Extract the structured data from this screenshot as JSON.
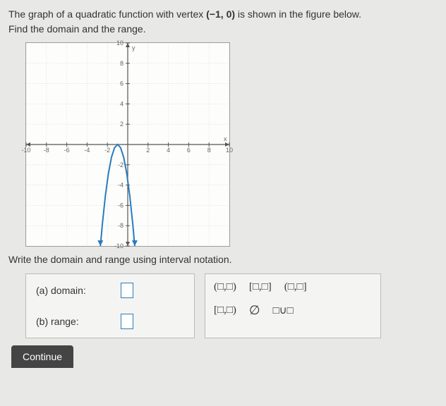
{
  "question": {
    "line1_pre": "The graph of a quadratic function with vertex ",
    "vertex": "(−1, 0)",
    "line1_post": " is shown in the figure below.",
    "line2": "Find the domain and the range."
  },
  "instruction": "Write the domain and range using interval notation.",
  "answers": {
    "a_label": "(a)  domain:",
    "b_label": "(b)  range:"
  },
  "symbols": {
    "open_open": "(□,□)",
    "closed_closed": "[□,□]",
    "open_closed": "(□,□]",
    "closed_open": "[□,□)",
    "empty": "∅",
    "union": "□∪□"
  },
  "continue_label": "Continue",
  "graph": {
    "type": "quadratic",
    "xlim": [
      -10,
      10
    ],
    "ylim": [
      -10,
      10
    ],
    "xtick_step": 2,
    "ytick_step": 2,
    "grid_color": "#d0d0cc",
    "axis_color": "#555",
    "curve_color": "#2a7bbf",
    "curve_width": 2,
    "background": "#fdfdfb",
    "vertex": [
      -1,
      0
    ],
    "a": -3.5,
    "points": [
      [
        -2.69,
        -10
      ],
      [
        -2.5,
        -7.88
      ],
      [
        -2.2,
        -5.04
      ],
      [
        -1.9,
        -2.84
      ],
      [
        -1.6,
        -1.26
      ],
      [
        -1.3,
        -0.32
      ],
      [
        -1.0,
        0.0
      ],
      [
        -0.7,
        -0.32
      ],
      [
        -0.4,
        -1.26
      ],
      [
        -0.1,
        -2.84
      ],
      [
        0.2,
        -5.04
      ],
      [
        0.5,
        -7.88
      ],
      [
        0.69,
        -10
      ]
    ],
    "arrows": true,
    "axis_labels_x": [
      "-10",
      "-8",
      "-6",
      "-4",
      "-2",
      "2",
      "4",
      "6",
      "8",
      "10"
    ],
    "axis_labels_y": [
      "-10",
      "-8",
      "-6",
      "-4",
      "-2",
      "2",
      "4",
      "6",
      "8",
      "10"
    ]
  },
  "colors": {
    "page_bg": "#e8e8e6",
    "panel_bg": "#f4f4f2",
    "border": "#bbb",
    "accent": "#2a7bbf",
    "text": "#333"
  }
}
